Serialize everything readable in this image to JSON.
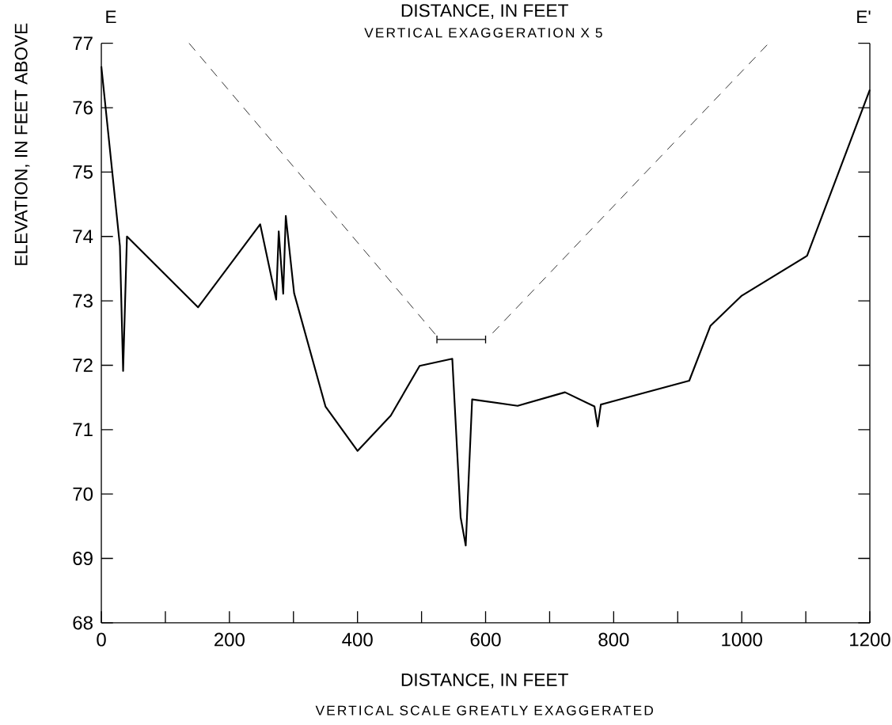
{
  "chart_data": {
    "type": "line",
    "title": "DISTANCE, IN FEET",
    "subtitle": "VERTICAL EXAGGERATION X 5",
    "xlabel": "DISTANCE, IN FEET",
    "ylabel": "ELEVATION, IN FEET ABOVE",
    "annotations": [
      "E",
      "E'",
      "VERTICAL SCALE GREATLY EXAGGERATED"
    ],
    "xlim": [
      0,
      1200
    ],
    "ylim": [
      68,
      77
    ],
    "xticks": [
      0,
      {
        "value": 100,
        "label": null
      },
      200,
      {
        "value": 300,
        "label": null
      },
      400,
      {
        "value": 500,
        "label": null
      },
      600,
      {
        "value": 700,
        "label": null
      },
      800,
      {
        "value": 900,
        "label": null
      },
      1000,
      {
        "value": 1100,
        "label": null
      },
      1200
    ],
    "yticks": [
      68,
      69,
      70,
      71,
      72,
      73,
      74,
      75,
      76,
      77
    ],
    "series": [
      {
        "color": "#000000",
        "line_style": "solid",
        "x": [
          0,
          29,
          34,
          40,
          151,
          248,
          273,
          277,
          284,
          288,
          301,
          350,
          400,
          452,
          497,
          548,
          561,
          569,
          579,
          650,
          724,
          770,
          775,
          780,
          918,
          951,
          1000,
          1102,
          1200
        ],
        "values": [
          76.64,
          73.85,
          71.91,
          74.0,
          72.9,
          74.19,
          73.02,
          74.08,
          73.11,
          74.32,
          73.12,
          71.36,
          70.67,
          71.22,
          71.99,
          72.1,
          69.64,
          69.2,
          71.47,
          71.37,
          71.58,
          71.36,
          71.05,
          71.39,
          71.76,
          72.61,
          73.08,
          73.7,
          76.28
        ]
      },
      {
        "color": "#000000",
        "line_style": "dashed",
        "x": [
          137,
          524
        ],
        "values": [
          77,
          72.45
        ]
      },
      {
        "color": "#000000",
        "line_style": "dashed",
        "x": [
          611,
          1042
        ],
        "values": [
          72.5,
          77
        ]
      },
      {
        "color": "#000000",
        "line_style": "solid",
        "x": [
          524,
          600
        ],
        "values": [
          72.4,
          72.4
        ],
        "errors": [
          0.06,
          0.06
        ]
      }
    ]
  }
}
